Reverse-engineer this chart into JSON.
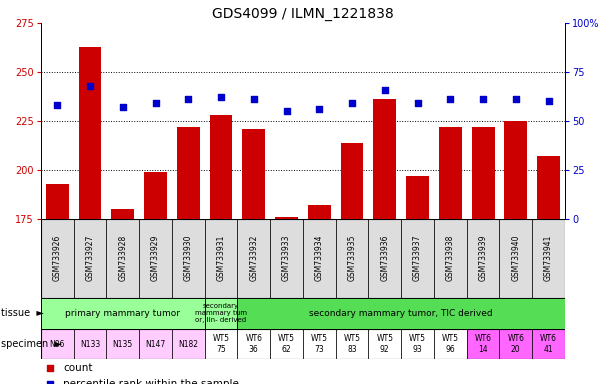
{
  "title": "GDS4099 / ILMN_1221838",
  "samples": [
    "GSM733926",
    "GSM733927",
    "GSM733928",
    "GSM733929",
    "GSM733930",
    "GSM733931",
    "GSM733932",
    "GSM733933",
    "GSM733934",
    "GSM733935",
    "GSM733936",
    "GSM733937",
    "GSM733938",
    "GSM733939",
    "GSM733940",
    "GSM733941"
  ],
  "counts": [
    193,
    263,
    180,
    199,
    222,
    228,
    221,
    176,
    182,
    214,
    236,
    197,
    222,
    222,
    225,
    207
  ],
  "percentile_ranks": [
    58,
    68,
    57,
    59,
    61,
    62,
    61,
    55,
    56,
    59,
    66,
    59,
    61,
    61,
    61,
    60
  ],
  "ylim_left": [
    175,
    275
  ],
  "ylim_right": [
    0,
    100
  ],
  "yticks_left": [
    175,
    200,
    225,
    250,
    275
  ],
  "yticks_right": [
    0,
    25,
    50,
    75,
    100
  ],
  "bar_color": "#cc0000",
  "dot_color": "#0000cc",
  "bar_width": 0.7,
  "tissue_groups": [
    {
      "label": "primary mammary tumor",
      "start": 0,
      "end": 4,
      "color": "#99ff99"
    },
    {
      "label": "secondary\nmammary tum\nor, lin- derived",
      "start": 5,
      "end": 5,
      "color": "#99ff99"
    },
    {
      "label": "secondary mammary tumor, TIC derived",
      "start": 6,
      "end": 15,
      "color": "#55dd55"
    }
  ],
  "specimen_labels": [
    "N86",
    "N133",
    "N135",
    "N147",
    "N182",
    "WT5\n75",
    "WT6\n36",
    "WT5\n62",
    "WT5\n73",
    "WT5\n83",
    "WT5\n92",
    "WT5\n93",
    "WT5\n96",
    "WT6\n14",
    "WT6\n20",
    "WT6\n41"
  ],
  "specimen_colors": [
    "#ffccff",
    "#ffccff",
    "#ffccff",
    "#ffccff",
    "#ffccff",
    "#ffffff",
    "#ffffff",
    "#ffffff",
    "#ffffff",
    "#ffffff",
    "#ffffff",
    "#ffffff",
    "#ffffff",
    "#ff66ff",
    "#ff66ff",
    "#ff66ff"
  ],
  "bar_bg_color": "#dddddd",
  "grid_color": "#000000",
  "dot_size": 25,
  "ylabel_left_color": "#cc0000",
  "ylabel_right_color": "#0000cc",
  "title_fontsize": 10,
  "tick_fontsize": 7,
  "sample_fontsize": 5.5,
  "table_fontsize": 6.0
}
